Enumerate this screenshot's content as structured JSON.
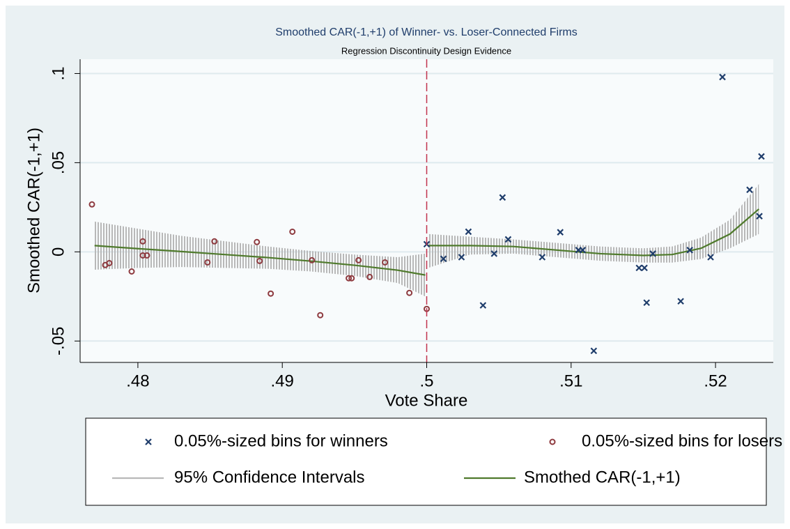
{
  "chart_data": {
    "type": "scatter",
    "title": "Smoothed CAR(-1,+1) of Winner- vs. Loser-Connected Firms",
    "subtitle": "Regression Discontinuity Design Evidence",
    "x_label": "Vote Share",
    "y_label": "Smoothed CAR(-1,+1)",
    "xlim": [
      0.476,
      0.524
    ],
    "ylim": [
      -0.062,
      0.108
    ],
    "xticks": [
      {
        "value": 0.48,
        "label": ".48"
      },
      {
        "value": 0.49,
        "label": ".49"
      },
      {
        "value": 0.5,
        "label": ".5"
      },
      {
        "value": 0.51,
        "label": ".51"
      },
      {
        "value": 0.52,
        "label": ".52"
      }
    ],
    "yticks": [
      {
        "value": -0.05,
        "label": "-.05"
      },
      0,
      {
        "value": 0.05,
        "label": ".05"
      },
      {
        "value": 0.1,
        "label": ".1"
      }
    ],
    "grid": true,
    "cutoff": {
      "x": 0.5,
      "color": "#c2334d"
    },
    "series": [
      {
        "name": "0.05%-sized bins for winners",
        "kind": "points",
        "marker": "x",
        "color": "#1f3d6b",
        "x": [
          0.5,
          0.50116,
          0.50289,
          0.50241,
          0.5039,
          0.50467,
          0.50525,
          0.50564,
          0.508,
          0.50925,
          0.51051,
          0.5108,
          0.51157,
          0.5147,
          0.51508,
          0.51523,
          0.51566,
          0.51759,
          0.51822,
          0.51966,
          0.52048,
          0.52236,
          0.52318,
          0.52304
        ],
        "values": [
          0.0043,
          -0.0039,
          0.0113,
          -0.003,
          -0.03,
          -0.001,
          0.0305,
          0.007,
          -0.003,
          0.011,
          0.001,
          0.001,
          -0.0555,
          -0.009,
          -0.009,
          -0.0285,
          -0.001,
          -0.0277,
          0.001,
          -0.003,
          0.098,
          0.0348,
          0.0535,
          0.02
        ]
      },
      {
        "name": "0.05%-sized bins for losers",
        "kind": "points",
        "marker": "circle",
        "color": "#8e3a3f",
        "x": [
          0.47682,
          0.47774,
          0.47802,
          0.47957,
          0.48034,
          0.48034,
          0.48063,
          0.48482,
          0.4853,
          0.48843,
          0.4892,
          0.48824,
          0.4907,
          0.49205,
          0.49263,
          0.4946,
          0.4948,
          0.49528,
          0.49605,
          0.49711,
          0.4988,
          0.5
        ],
        "values": [
          0.0266,
          -0.0074,
          -0.0063,
          -0.011,
          0.0059,
          -0.002,
          -0.002,
          -0.0059,
          0.0059,
          -0.0051,
          -0.0234,
          0.0055,
          0.0113,
          -0.0047,
          -0.0355,
          -0.0148,
          -0.0148,
          -0.0047,
          -0.0141,
          -0.0059,
          -0.023,
          -0.032
        ]
      },
      {
        "name": "95% Confidence Intervals",
        "kind": "band",
        "color": "#b8b8b8",
        "x": [
          0.477,
          0.48,
          0.483,
          0.486,
          0.489,
          0.492,
          0.495,
          0.498,
          0.4999,
          null,
          0.5001,
          0.503,
          0.506,
          0.509,
          0.512,
          0.515,
          0.517,
          0.519,
          0.521,
          0.523
        ],
        "upper": [
          0.017,
          0.013,
          0.009,
          0.006,
          0.003,
          0.0005,
          -0.0015,
          -0.003,
          -0.001,
          null,
          0.01,
          0.0085,
          0.007,
          0.005,
          0.003,
          0.002,
          0.003,
          0.008,
          0.018,
          0.038
        ],
        "lower": [
          -0.01,
          -0.009,
          -0.0085,
          -0.009,
          -0.0095,
          -0.011,
          -0.0135,
          -0.0175,
          -0.025,
          null,
          -0.009,
          -0.0015,
          -0.001,
          -0.003,
          -0.005,
          -0.006,
          -0.006,
          -0.004,
          0.002,
          0.01
        ]
      },
      {
        "name": "Smothed CAR(-1,+1)",
        "kind": "line",
        "color": "#4f7a2c",
        "x": [
          0.477,
          0.48,
          0.483,
          0.486,
          0.489,
          0.492,
          0.495,
          0.498,
          0.4999,
          null,
          0.5001,
          0.503,
          0.506,
          0.509,
          0.512,
          0.515,
          0.517,
          0.519,
          0.521,
          0.523
        ],
        "values": [
          0.0035,
          0.0018,
          0.0002,
          -0.0015,
          -0.0032,
          -0.0052,
          -0.0075,
          -0.0103,
          -0.013,
          null,
          0.0035,
          0.0035,
          0.003,
          0.001,
          -0.001,
          -0.002,
          -0.0015,
          0.002,
          0.01,
          0.024
        ]
      }
    ]
  }
}
